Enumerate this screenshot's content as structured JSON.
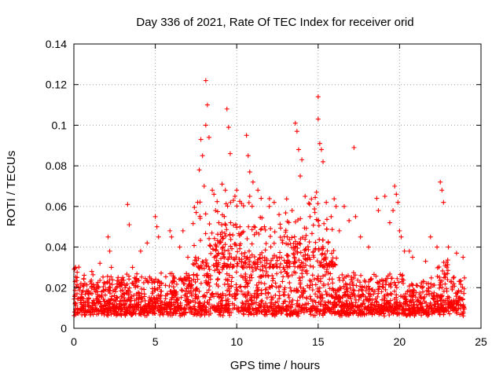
{
  "chart_data": {
    "type": "scatter",
    "title": "Day 336 of 2021, Rate Of TEC Index for receiver orid",
    "xlabel": "GPS time / hours",
    "ylabel": "ROTI / TECUs",
    "xlim": [
      0,
      25
    ],
    "ylim": [
      0,
      0.14
    ],
    "x_ticks": [
      "0",
      "5",
      "10",
      "15",
      "20",
      "25"
    ],
    "y_ticks": [
      "0",
      "0.02",
      "0.04",
      "0.06",
      "0.08",
      "0.1",
      "0.12",
      "0.14"
    ],
    "grid": true,
    "marker": "+",
    "color": "#ff0000",
    "series": [
      {
        "x": [
          0.1,
          0.2,
          0.3,
          0.5,
          1.1,
          1.6,
          2.1,
          2.2,
          2.3,
          3.0,
          3.3,
          3.4,
          3.6,
          4.1,
          4.5,
          5.0,
          5.1,
          5.2,
          5.9,
          6.0,
          6.5,
          6.7,
          7.0,
          7.6,
          7.7,
          7.8,
          7.9,
          8.0,
          8.1,
          8.1,
          8.2,
          8.3,
          8.5,
          8.6,
          8.7,
          8.9,
          9.1,
          9.3,
          9.4,
          9.5,
          9.6,
          9.8,
          10.0,
          10.2,
          10.6,
          10.7,
          10.8,
          10.8,
          11.0,
          11.3,
          11.5,
          11.7,
          12.0,
          12.3,
          12.6,
          13.1,
          13.4,
          13.6,
          13.7,
          13.8,
          13.9,
          14.0,
          14.2,
          14.5,
          14.8,
          14.9,
          15.0,
          15.0,
          15.1,
          15.2,
          15.3,
          15.5,
          15.8,
          16.1,
          16.3,
          16.6,
          16.9,
          17.2,
          17.3,
          17.6,
          18.1,
          18.6,
          18.7,
          19.1,
          19.4,
          19.6,
          19.7,
          19.8,
          19.9,
          20.0,
          20.1,
          20.3,
          20.6,
          20.8,
          21.6,
          21.9,
          22.3,
          22.5,
          22.6,
          22.7,
          23.0,
          23.5,
          23.9
        ],
        "y": [
          0.03,
          0.025,
          0.02,
          0.015,
          0.028,
          0.032,
          0.045,
          0.038,
          0.03,
          0.025,
          0.061,
          0.051,
          0.03,
          0.038,
          0.042,
          0.055,
          0.05,
          0.045,
          0.048,
          0.045,
          0.04,
          0.048,
          0.035,
          0.062,
          0.078,
          0.093,
          0.085,
          0.07,
          0.1,
          0.122,
          0.11,
          0.094,
          0.068,
          0.066,
          0.058,
          0.052,
          0.071,
          0.068,
          0.108,
          0.099,
          0.086,
          0.063,
          0.068,
          0.05,
          0.095,
          0.085,
          0.077,
          0.065,
          0.072,
          0.068,
          0.064,
          0.05,
          0.06,
          0.062,
          0.056,
          0.045,
          0.058,
          0.101,
          0.097,
          0.088,
          0.075,
          0.083,
          0.065,
          0.055,
          0.057,
          0.067,
          0.103,
          0.114,
          0.091,
          0.088,
          0.082,
          0.062,
          0.055,
          0.06,
          0.048,
          0.06,
          0.053,
          0.089,
          0.055,
          0.045,
          0.04,
          0.064,
          0.058,
          0.065,
          0.052,
          0.058,
          0.07,
          0.066,
          0.062,
          0.048,
          0.045,
          0.038,
          0.038,
          0.035,
          0.033,
          0.045,
          0.04,
          0.072,
          0.068,
          0.062,
          0.04,
          0.037,
          0.035
        ]
      }
    ]
  }
}
